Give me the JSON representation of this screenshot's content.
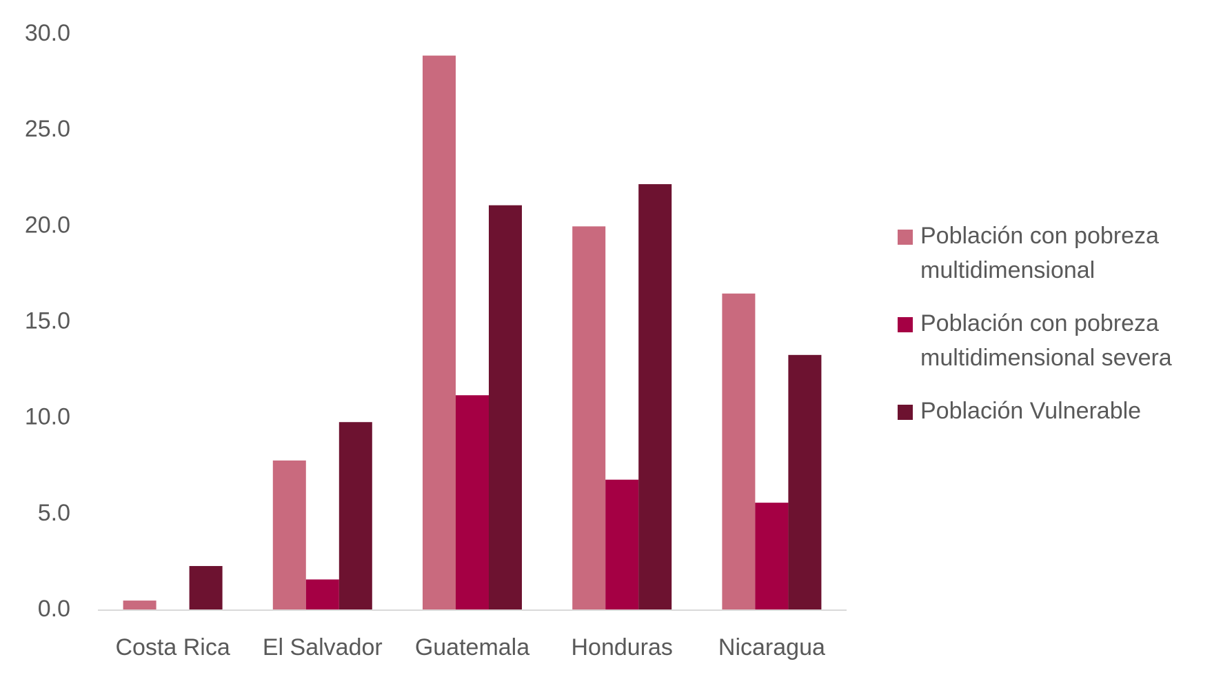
{
  "chart_data": {
    "type": "bar",
    "title": "",
    "xlabel": "",
    "ylabel": "",
    "categories": [
      "Costa Rica",
      "El Salvador",
      "Guatemala",
      "Honduras",
      "Nicaragua"
    ],
    "series": [
      {
        "name": "Población con pobreza multidimensional",
        "legend_lines": [
          "Población con pobreza",
          "multidimensional"
        ],
        "color": "#c96a7e",
        "values": [
          0.5,
          7.8,
          28.9,
          20.0,
          16.5
        ]
      },
      {
        "name": "Población con pobreza multidimensional severa",
        "legend_lines": [
          "Población con pobreza",
          "multidimensional severa"
        ],
        "color": "#a50044",
        "values": [
          0.0,
          1.6,
          11.2,
          6.8,
          5.6
        ]
      },
      {
        "name": "Población Vulnerable",
        "legend_lines": [
          "Población Vulnerable"
        ],
        "color": "#6d1230",
        "values": [
          2.3,
          9.8,
          21.1,
          22.2,
          13.3
        ]
      }
    ],
    "ylim": [
      0,
      30
    ],
    "y_ticks": [
      "0.0",
      "5.0",
      "10.0",
      "15.0",
      "20.0",
      "25.0",
      "30.0"
    ],
    "grid": false,
    "legend_position": "right"
  }
}
